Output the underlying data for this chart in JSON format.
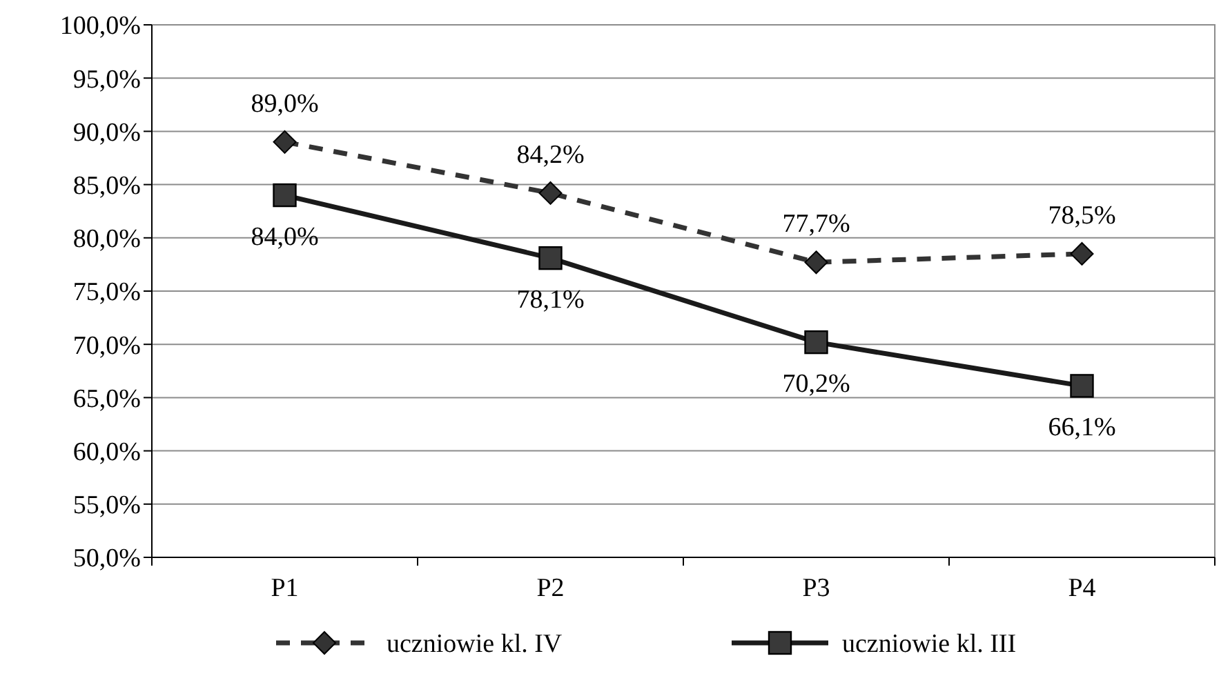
{
  "chart_data": {
    "type": "line",
    "categories": [
      "P1",
      "P2",
      "P3",
      "P4"
    ],
    "series": [
      {
        "name": "uczniowie kl. IV",
        "color": "#333333",
        "marker": "diamond",
        "line_style": "dashed",
        "values": [
          89.0,
          84.2,
          77.7,
          78.5
        ],
        "value_labels": [
          "89,0%",
          "84,2%",
          "77,7%",
          "78,5%"
        ]
      },
      {
        "name": "uczniowie kl. III",
        "color": "#1a1a1a",
        "marker": "square",
        "line_style": "solid",
        "values": [
          84.0,
          78.1,
          70.2,
          66.1
        ],
        "value_labels": [
          "84,0%",
          "78,1%",
          "70,2%",
          "66,1%"
        ]
      }
    ],
    "ylim": [
      50,
      100
    ],
    "yticks": [
      {
        "value": 50,
        "label": "50,0%"
      },
      {
        "value": 55,
        "label": "55,0%"
      },
      {
        "value": 60,
        "label": "60,0%"
      },
      {
        "value": 65,
        "label": "65,0%"
      },
      {
        "value": 70,
        "label": "70,0%"
      },
      {
        "value": 75,
        "label": "75,0%"
      },
      {
        "value": 80,
        "label": "80,0%"
      },
      {
        "value": 85,
        "label": "85,0%"
      },
      {
        "value": 90,
        "label": "90,0%"
      },
      {
        "value": 95,
        "label": "95,0%"
      },
      {
        "value": 100,
        "label": "100,0%"
      }
    ],
    "grid": "y",
    "legend": "bottom"
  }
}
